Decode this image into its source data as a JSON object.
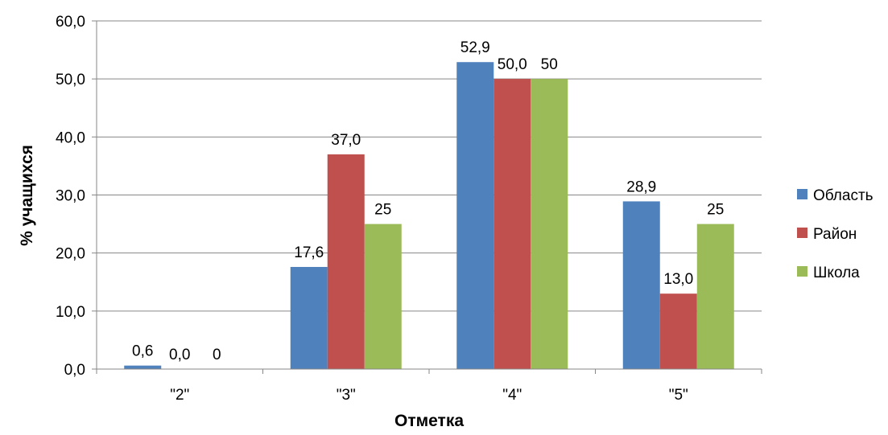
{
  "chart_data": {
    "type": "bar",
    "categories": [
      "\"2\"",
      "\"3\"",
      "\"4\"",
      "\"5\""
    ],
    "series": [
      {
        "name": "Область",
        "values": [
          0.6,
          17.6,
          52.9,
          28.9
        ],
        "labels": [
          "0,6",
          "17,6",
          "52,9",
          "28,9"
        ],
        "color": "#4F81BD"
      },
      {
        "name": "Район",
        "values": [
          0.0,
          37.0,
          50.0,
          13.0
        ],
        "labels": [
          "0,0",
          "37,0",
          "50,0",
          "13,0"
        ],
        "color": "#C0504D"
      },
      {
        "name": "Школа",
        "values": [
          0,
          25,
          50,
          25
        ],
        "labels": [
          "0",
          "25",
          "50",
          "25"
        ],
        "color": "#9BBB59"
      }
    ],
    "xlabel": "Отметка",
    "ylabel": "% учащихся",
    "ylim": [
      0,
      60
    ],
    "yticks": [
      0,
      10,
      20,
      30,
      40,
      50,
      60
    ],
    "ytick_labels": [
      "0,0",
      "10,0",
      "20,0",
      "30,0",
      "40,0",
      "50,0",
      "60,0"
    ],
    "grid": true,
    "legend_position": "right"
  }
}
